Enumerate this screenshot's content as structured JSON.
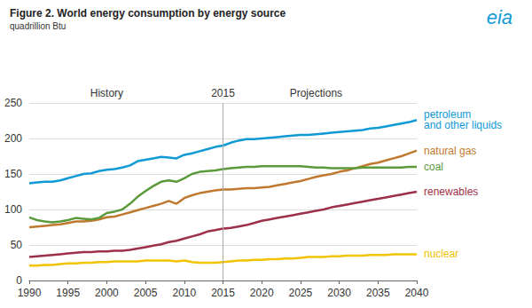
{
  "chart_data": {
    "type": "line",
    "title": "Figure 2. World energy consumption by energy source",
    "subtitle": "quadrillion Btu",
    "logo": "eia",
    "x": [
      1990,
      1991,
      1992,
      1993,
      1994,
      1995,
      1996,
      1997,
      1998,
      1999,
      2000,
      2001,
      2002,
      2003,
      2004,
      2005,
      2006,
      2007,
      2008,
      2009,
      2010,
      2011,
      2012,
      2013,
      2014,
      2015,
      2016,
      2017,
      2018,
      2019,
      2020,
      2021,
      2022,
      2023,
      2024,
      2025,
      2026,
      2027,
      2028,
      2029,
      2030,
      2031,
      2032,
      2033,
      2034,
      2035,
      2036,
      2037,
      2038,
      2039,
      2040
    ],
    "series": [
      {
        "name": "petroleum and other liquids",
        "color": "#0f9ad6",
        "values": [
          137,
          138,
          139,
          139,
          141,
          144,
          147,
          150,
          151,
          154,
          156,
          157,
          159,
          162,
          168,
          170,
          172,
          174,
          173,
          172,
          177,
          179,
          182,
          185,
          188,
          190,
          194,
          197,
          199,
          199,
          200,
          201,
          202,
          203,
          204,
          205,
          205,
          206,
          207,
          208,
          209,
          210,
          211,
          212,
          214,
          215,
          217,
          219,
          221,
          223,
          226
        ]
      },
      {
        "name": "natural gas",
        "color": "#c0782e",
        "values": [
          75,
          76,
          77,
          78,
          79,
          81,
          83,
          83,
          84,
          86,
          89,
          90,
          93,
          96,
          99,
          102,
          105,
          108,
          112,
          108,
          116,
          120,
          123,
          125,
          127,
          128,
          128,
          129,
          130,
          130,
          131,
          132,
          134,
          136,
          138,
          140,
          143,
          146,
          148,
          150,
          153,
          155,
          158,
          161,
          164,
          166,
          169,
          172,
          175,
          179,
          183
        ]
      },
      {
        "name": "coal",
        "color": "#5b9a3b",
        "values": [
          89,
          85,
          83,
          82,
          83,
          85,
          88,
          87,
          86,
          88,
          95,
          97,
          100,
          108,
          118,
          126,
          133,
          139,
          141,
          139,
          144,
          150,
          153,
          154,
          155,
          157,
          158,
          159,
          160,
          160,
          161,
          161,
          161,
          161,
          161,
          161,
          160,
          159,
          159,
          158,
          158,
          158,
          158,
          159,
          159,
          159,
          159,
          159,
          159,
          160,
          160
        ]
      },
      {
        "name": "renewables",
        "color": "#9e2f48",
        "values": [
          33,
          34,
          35,
          36,
          37,
          38,
          39,
          40,
          40,
          41,
          41,
          42,
          42,
          43,
          45,
          47,
          49,
          51,
          54,
          56,
          59,
          62,
          65,
          69,
          71,
          73,
          74,
          76,
          78,
          81,
          84,
          86,
          88,
          90,
          92,
          94,
          96,
          98,
          100,
          103,
          105,
          107,
          109,
          111,
          113,
          115,
          117,
          119,
          121,
          123,
          125
        ]
      },
      {
        "name": "nuclear",
        "color": "#f2c300",
        "values": [
          21,
          21,
          22,
          22,
          23,
          24,
          24,
          25,
          25,
          26,
          26,
          27,
          27,
          27,
          27,
          28,
          28,
          28,
          28,
          27,
          28,
          26,
          25,
          25,
          25,
          26,
          27,
          28,
          28,
          29,
          29,
          30,
          30,
          31,
          31,
          32,
          33,
          33,
          33,
          34,
          34,
          35,
          35,
          35,
          36,
          36,
          36,
          37,
          37,
          37,
          37
        ]
      }
    ],
    "xlim": [
      1990,
      2040
    ],
    "xticks": [
      1990,
      1995,
      2000,
      2005,
      2010,
      2015,
      2020,
      2025,
      2030,
      2035,
      2040
    ],
    "ylim": [
      0,
      250
    ],
    "yticks": [
      0,
      50,
      100,
      150,
      200,
      250
    ],
    "grid": true,
    "reference_line": {
      "x": 2015,
      "label": "2015"
    },
    "annotations": [
      {
        "text": "History",
        "x": 2000
      },
      {
        "text": "Projections",
        "x": 2027
      }
    ]
  }
}
